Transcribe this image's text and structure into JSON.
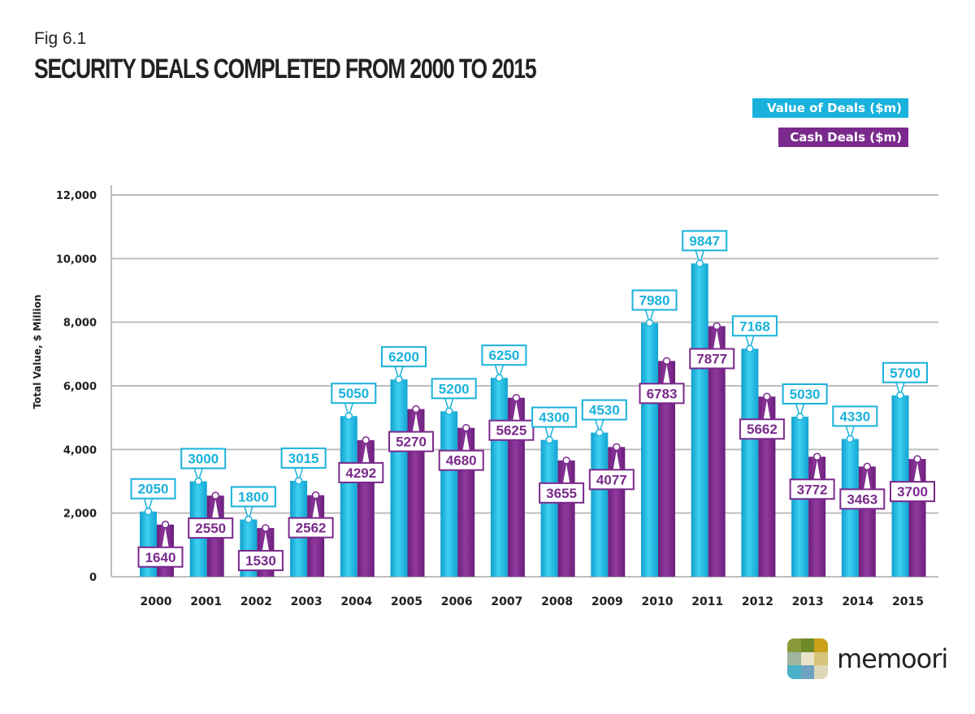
{
  "chart_data": {
    "type": "bar",
    "fig_label": "Fig 6.1",
    "title": "SECURITY DEALS COMPLETED FROM 2000 TO 2015",
    "ylabel": "Total Value, $ Million",
    "xlabel": "",
    "ylim": [
      0,
      12000
    ],
    "yticks": [
      0,
      2000,
      4000,
      6000,
      8000,
      10000,
      12000
    ],
    "ytick_labels": [
      "0",
      "2,000",
      "4,000",
      "6,000",
      "8,000",
      "10,000",
      "12,000"
    ],
    "grid": true,
    "legend_placement": "top-right",
    "categories": [
      "2000",
      "2001",
      "2002",
      "2003",
      "2004",
      "2005",
      "2006",
      "2007",
      "2008",
      "2009",
      "2010",
      "2011",
      "2012",
      "2013",
      "2014",
      "2015"
    ],
    "series": [
      {
        "name": "Value of Deals ($m)",
        "color": "#19b2dc",
        "values": [
          2050,
          3000,
          1800,
          3015,
          5050,
          6200,
          5200,
          6250,
          4300,
          4530,
          7980,
          9847,
          7168,
          5030,
          4330,
          5700
        ]
      },
      {
        "name": "Cash Deals ($m)",
        "color": "#7a2a8c",
        "values": [
          1640,
          2550,
          1530,
          2562,
          4292,
          5270,
          4680,
          5625,
          3655,
          4077,
          6783,
          7877,
          5662,
          3772,
          3463,
          3700
        ]
      }
    ]
  },
  "logo": {
    "text": "memoori"
  }
}
